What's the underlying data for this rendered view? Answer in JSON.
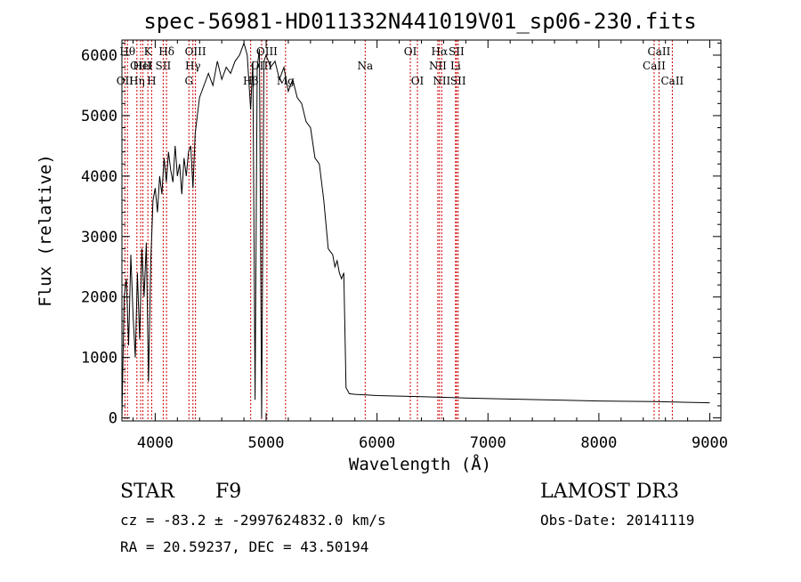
{
  "chart_data": {
    "type": "line",
    "title": "spec-56981-HD011332N441019V01_sp06-230.fits",
    "xlabel": "Wavelength (Å)",
    "ylabel": "Flux (relative)",
    "xlim": [
      3700,
      9100
    ],
    "ylim": [
      -50,
      6250
    ],
    "x_ticks": [
      4000,
      5000,
      6000,
      7000,
      8000,
      9000
    ],
    "y_ticks": [
      0,
      1000,
      2000,
      3000,
      4000,
      5000,
      6000
    ],
    "series": [
      {
        "x": [
          3700,
          3720,
          3740,
          3760,
          3780,
          3800,
          3820,
          3840,
          3860,
          3880,
          3900,
          3920,
          3940,
          3960,
          3970,
          3980,
          4000,
          4020,
          4040,
          4060,
          4080,
          4100,
          4120,
          4140,
          4160,
          4180,
          4200,
          4220,
          4240,
          4260,
          4280,
          4300,
          4320,
          4340,
          4360,
          4380,
          4400,
          4440,
          4480,
          4520,
          4560,
          4600,
          4640,
          4680,
          4720,
          4760,
          4800,
          4830,
          4860,
          4880,
          4900,
          4920,
          4940,
          4960,
          4980,
          5000,
          5040,
          5080,
          5120,
          5160,
          5200,
          5240,
          5280,
          5320,
          5360,
          5400,
          5440,
          5480,
          5520,
          5560,
          5600,
          5620,
          5640,
          5660,
          5680,
          5700,
          5720,
          5750,
          5800,
          5900,
          6000,
          6200,
          6400,
          6600,
          6800,
          7000,
          7500,
          8000,
          8500,
          9000
        ],
        "y": [
          0,
          2000,
          2300,
          1200,
          2700,
          1700,
          1000,
          2400,
          1300,
          2800,
          2000,
          2900,
          600,
          2600,
          3100,
          3600,
          3800,
          3400,
          4000,
          3700,
          4300,
          3900,
          4400,
          4100,
          3900,
          4500,
          4000,
          4200,
          3700,
          4300,
          4000,
          4400,
          4500,
          3800,
          4700,
          5000,
          5300,
          5500,
          5700,
          5500,
          5900,
          5600,
          5800,
          5700,
          5900,
          6000,
          6200,
          6000,
          5100,
          5900,
          300,
          5800,
          6100,
          0,
          5900,
          6000,
          5800,
          5900,
          5600,
          5800,
          5400,
          5600,
          5300,
          5200,
          4900,
          4800,
          4300,
          4200,
          3600,
          2800,
          2700,
          2500,
          2600,
          2400,
          2300,
          2400,
          500,
          400,
          390,
          380,
          370,
          360,
          350,
          340,
          330,
          320,
          300,
          280,
          270,
          250
        ]
      }
    ],
    "lines": [
      {
        "name": "OII",
        "wavelength": 3727,
        "row": 2
      },
      {
        "name": "Hθ",
        "wavelength": 3750,
        "row": 0
      },
      {
        "name": "Hη",
        "wavelength": 3835,
        "row": 2
      },
      {
        "name": "OIII",
        "wavelength": 3869,
        "row": 1
      },
      {
        "name": "HeI",
        "wavelength": 3889,
        "row": 1
      },
      {
        "name": "K",
        "wavelength": 3934,
        "row": 0
      },
      {
        "name": "H",
        "wavelength": 3968,
        "row": 2
      },
      {
        "name": "SII",
        "wavelength": 4072,
        "row": 1
      },
      {
        "name": "Hδ",
        "wavelength": 4102,
        "row": 0
      },
      {
        "name": "G",
        "wavelength": 4304,
        "row": 2
      },
      {
        "name": "Hγ",
        "wavelength": 4340,
        "row": 1
      },
      {
        "name": "OIII",
        "wavelength": 4363,
        "row": 0
      },
      {
        "name": "Hβ",
        "wavelength": 4861,
        "row": 2
      },
      {
        "name": "OIII",
        "wavelength": 4959,
        "row": 1
      },
      {
        "name": "OIII",
        "wavelength": 5007,
        "row": 0
      },
      {
        "name": "Mg",
        "wavelength": 5175,
        "row": 2
      },
      {
        "name": "Na",
        "wavelength": 5893,
        "row": 1
      },
      {
        "name": "OI",
        "wavelength": 6300,
        "row": 0
      },
      {
        "name": "OI",
        "wavelength": 6364,
        "row": 2
      },
      {
        "name": "NII",
        "wavelength": 6548,
        "row": 1
      },
      {
        "name": "Hα",
        "wavelength": 6563,
        "row": 0
      },
      {
        "name": "NII",
        "wavelength": 6583,
        "row": 2
      },
      {
        "name": "Li",
        "wavelength": 6708,
        "row": 1
      },
      {
        "name": "SII",
        "wavelength": 6716,
        "row": 0
      },
      {
        "name": "SII",
        "wavelength": 6731,
        "row": 2
      },
      {
        "name": "CaII",
        "wavelength": 8498,
        "row": 1
      },
      {
        "name": "CaII",
        "wavelength": 8542,
        "row": 0
      },
      {
        "name": "CaII",
        "wavelength": 8662,
        "row": 2
      }
    ],
    "grid": false,
    "line_color": "#000000",
    "marker_color": "#cc0000"
  },
  "info": {
    "object_type": "STAR",
    "subclass": "F9",
    "survey": "LAMOST DR3",
    "redshift_line": "cz = -83.2 ± -2997624832.0 km/s",
    "obs_date": "Obs-Date: 20141119",
    "coords": "RA =  20.59237, DEC =  43.50194"
  }
}
